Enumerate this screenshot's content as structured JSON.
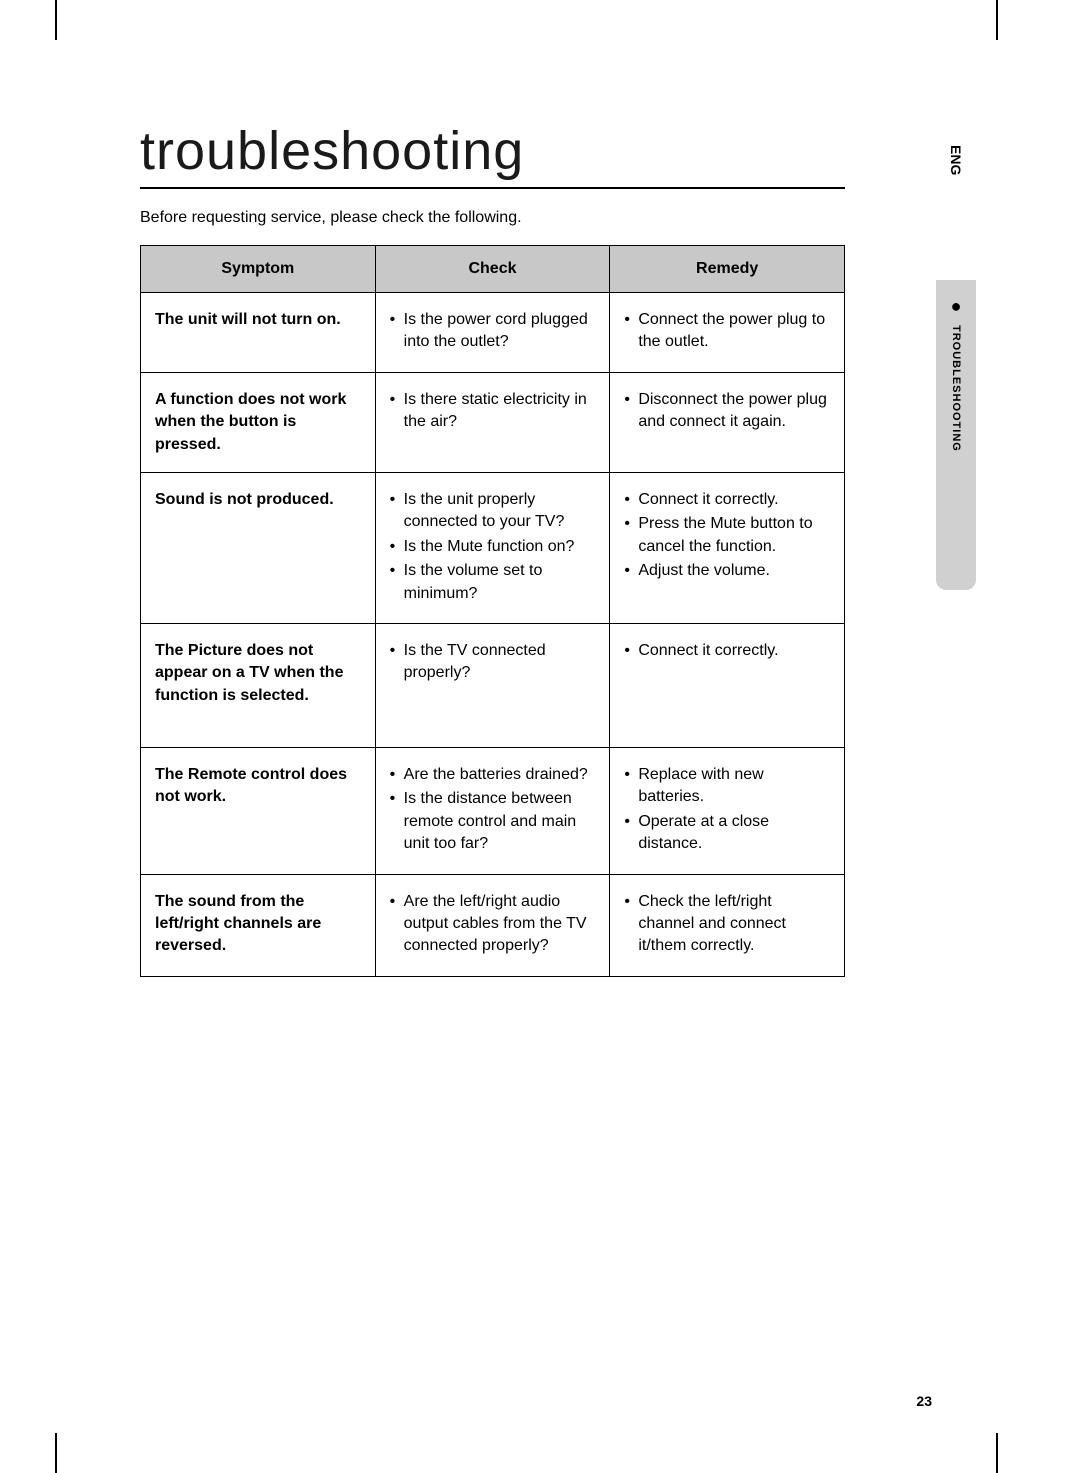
{
  "sideTab": {
    "language": "ENG",
    "section": "TROUBLESHOOTING"
  },
  "page": {
    "title": "troubleshooting",
    "intro": "Before requesting service, please check the following.",
    "number": "23"
  },
  "table": {
    "headers": {
      "symptom": "Symptom",
      "check": "Check",
      "remedy": "Remedy"
    },
    "rows": [
      {
        "symptom": "The unit will not turn on.",
        "checks": [
          "Is the power cord plugged into the outlet?"
        ],
        "remedies": [
          "Connect the power plug to the outlet."
        ]
      },
      {
        "symptom": "A function does not work when the button is pressed.",
        "checks": [
          "Is there static electricity in the air?"
        ],
        "remedies": [
          "Disconnect the power plug and connect it again."
        ]
      },
      {
        "symptom": "Sound is not produced.",
        "checks": [
          "Is the unit properly connected to your TV?",
          "Is the Mute function on?",
          "Is the volume set to minimum?"
        ],
        "remedies": [
          "Connect it correctly.",
          "Press the Mute button to cancel the function.",
          "Adjust the volume."
        ]
      },
      {
        "symptom": "The Picture does not appear on a TV when the function is selected.",
        "checks": [
          "Is the TV connected properly?"
        ],
        "remedies": [
          "Connect it correctly."
        ],
        "tall": true
      },
      {
        "symptom": "The Remote control does not work.",
        "checks": [
          "Are the batteries drained?",
          "Is the distance between remote control and main unit too far?"
        ],
        "remedies": [
          "Replace with new batteries.",
          "Operate at a close distance."
        ]
      },
      {
        "symptom": "The sound from the left/right channels are reversed.",
        "checks": [
          "Are the left/right audio output cables from the TV connected properly?"
        ],
        "remedies": [
          "Check the left/right channel and connect it/them correctly."
        ]
      }
    ]
  }
}
